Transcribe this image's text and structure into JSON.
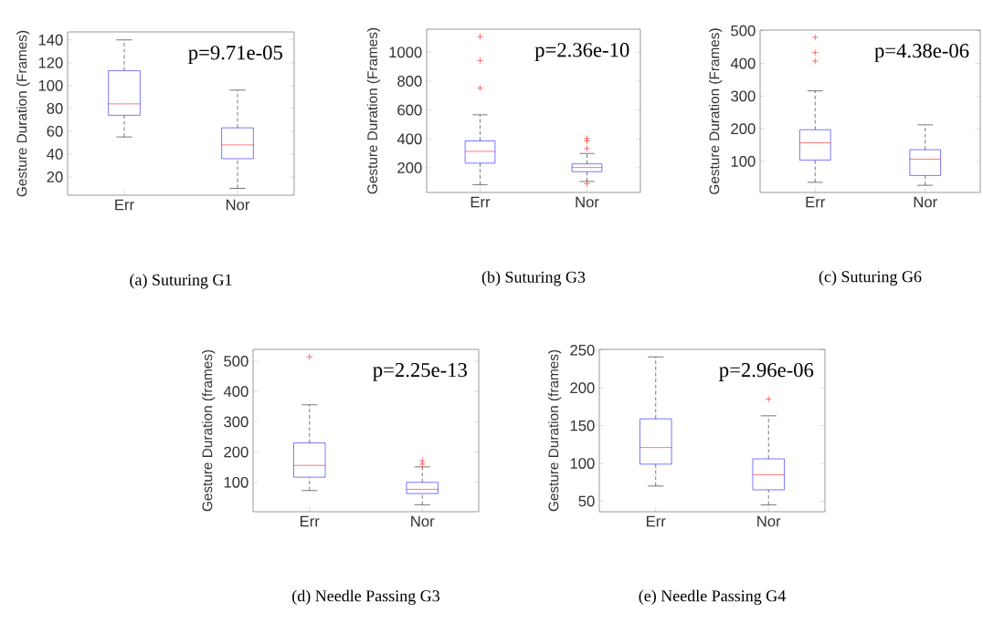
{
  "chart_data": [
    {
      "type": "box",
      "title": "(a) Suturing G1",
      "ylabel": "Gesture Duration (Frames)",
      "categories": [
        "Err",
        "Nor"
      ],
      "series": [
        {
          "color": "#0000ff",
          "boxes": [
            {
              "low": 55,
              "q1": 74,
              "median": 84,
              "q3": 113,
              "high": 140
            },
            {
              "low": 10,
              "q1": 36,
              "median": 48,
              "q3": 63,
              "high": 96
            }
          ]
        }
      ],
      "annotations": [
        "p=9.71e-05"
      ],
      "ylim": [
        4,
        147
      ],
      "yticks": [
        20,
        40,
        60,
        80,
        100,
        120,
        140
      ]
    },
    {
      "type": "box",
      "title": "(b) Suturing G3",
      "ylabel": "Gesture Duration (Frames)",
      "categories": [
        "Err",
        "Nor"
      ],
      "series": [
        {
          "color": "#0000ff",
          "boxes": [
            {
              "low": 82,
              "q1": 232,
              "median": 314,
              "q3": 386,
              "high": 567,
              "outliers": [
                753,
                943,
                1108
              ]
            },
            {
              "low": 105,
              "q1": 173,
              "median": 202,
              "q3": 227,
              "high": 299,
              "outliers": [
                90,
                333,
                386,
                403
              ]
            }
          ]
        }
      ],
      "annotations": [
        "p=2.36e-10"
      ],
      "ylim": [
        29,
        1160
      ],
      "yticks": [
        200,
        400,
        600,
        800,
        1000
      ]
    },
    {
      "type": "box",
      "title": "(c) Suturing G6",
      "ylabel": "Gesture Duration (Frames)",
      "categories": [
        "Err",
        "Nor"
      ],
      "series": [
        {
          "color": "#0000ff",
          "boxes": [
            {
              "low": 36,
              "q1": 104,
              "median": 157,
              "q3": 197,
              "high": 316,
              "outliers": [
                407,
                433,
                480
              ]
            },
            {
              "low": 27,
              "q1": 57,
              "median": 107,
              "q3": 136,
              "high": 212
            }
          ]
        }
      ],
      "annotations": [
        "p=4.38e-06"
      ],
      "ylim": [
        5,
        502
      ],
      "yticks": [
        100,
        200,
        300,
        400,
        500
      ]
    },
    {
      "type": "box",
      "title": "(d) Needle Passing G3",
      "ylabel": "Gesture Duration (frames)",
      "categories": [
        "Err",
        "Nor"
      ],
      "series": [
        {
          "color": "#0000ff",
          "boxes": [
            {
              "low": 73,
              "q1": 117,
              "median": 156,
              "q3": 230,
              "high": 356,
              "outliers": [
                514
              ]
            },
            {
              "low": 26,
              "q1": 63,
              "median": 77,
              "q3": 100,
              "high": 151,
              "outliers": [
                160,
                171
              ]
            }
          ]
        }
      ],
      "annotations": [
        "p=2.25e-13"
      ],
      "ylim": [
        3,
        539
      ],
      "yticks": [
        100,
        200,
        300,
        400,
        500
      ]
    },
    {
      "type": "box",
      "title": "(e) Needle Passing G4",
      "ylabel": "Gesture Duration (frames)",
      "categories": [
        "Err",
        "Nor"
      ],
      "series": [
        {
          "color": "#0000ff",
          "boxes": [
            {
              "low": 70,
              "q1": 99,
              "median": 121,
              "q3": 159,
              "high": 241
            },
            {
              "low": 45,
              "q1": 65,
              "median": 85,
              "q3": 106,
              "high": 163,
              "outliers": [
                185
              ]
            }
          ]
        }
      ],
      "annotations": [
        "p=2.96e-06"
      ],
      "ylim": [
        36,
        251
      ],
      "yticks": [
        50,
        100,
        150,
        200,
        250
      ]
    }
  ]
}
